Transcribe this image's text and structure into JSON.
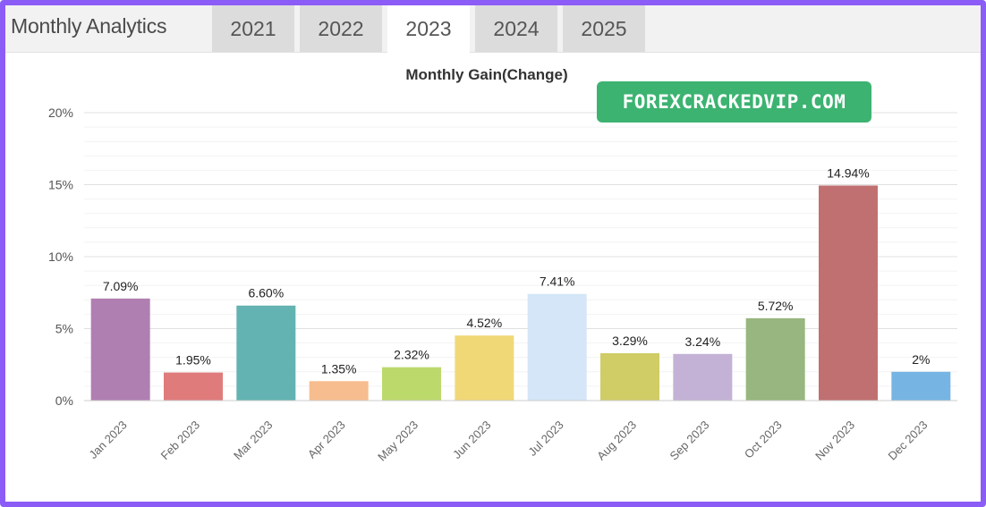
{
  "header": {
    "title": "Monthly Analytics",
    "tabs": [
      {
        "label": "2021",
        "active": false
      },
      {
        "label": "2022",
        "active": false
      },
      {
        "label": "2023",
        "active": true
      },
      {
        "label": "2024",
        "active": false
      },
      {
        "label": "2025",
        "active": false
      }
    ]
  },
  "watermark": {
    "text": "FOREXCRACKEDVIP.COM",
    "color": "#3cb371"
  },
  "frame_color": "#8b5cf6",
  "chart_data": {
    "type": "bar",
    "title": "Monthly Gain(Change)",
    "xlabel": "",
    "ylabel": "",
    "ylim": [
      0,
      20
    ],
    "yticks": [
      0,
      5,
      10,
      15,
      20
    ],
    "ytick_labels": [
      "0%",
      "5%",
      "10%",
      "15%",
      "20%"
    ],
    "grid": true,
    "categories": [
      "Jan 2023",
      "Feb 2023",
      "Mar 2023",
      "Apr 2023",
      "May 2023",
      "Jun 2023",
      "Jul 2023",
      "Aug 2023",
      "Sep 2023",
      "Oct 2023",
      "Nov 2023",
      "Dec 2023"
    ],
    "values": [
      7.09,
      1.95,
      6.6,
      1.35,
      2.32,
      4.52,
      7.41,
      3.29,
      3.24,
      5.72,
      14.94,
      2
    ],
    "value_labels": [
      "7.09%",
      "1.95%",
      "6.60%",
      "1.35%",
      "2.32%",
      "4.52%",
      "7.41%",
      "3.29%",
      "3.24%",
      "5.72%",
      "14.94%",
      "2%"
    ],
    "colors": [
      "#b07fb2",
      "#e07b7b",
      "#62b3b1",
      "#f7bd8e",
      "#bcd96c",
      "#f1d877",
      "#d4e6f7",
      "#d0cc66",
      "#c3b2d6",
      "#98b67f",
      "#c07070",
      "#76b5e3"
    ]
  }
}
